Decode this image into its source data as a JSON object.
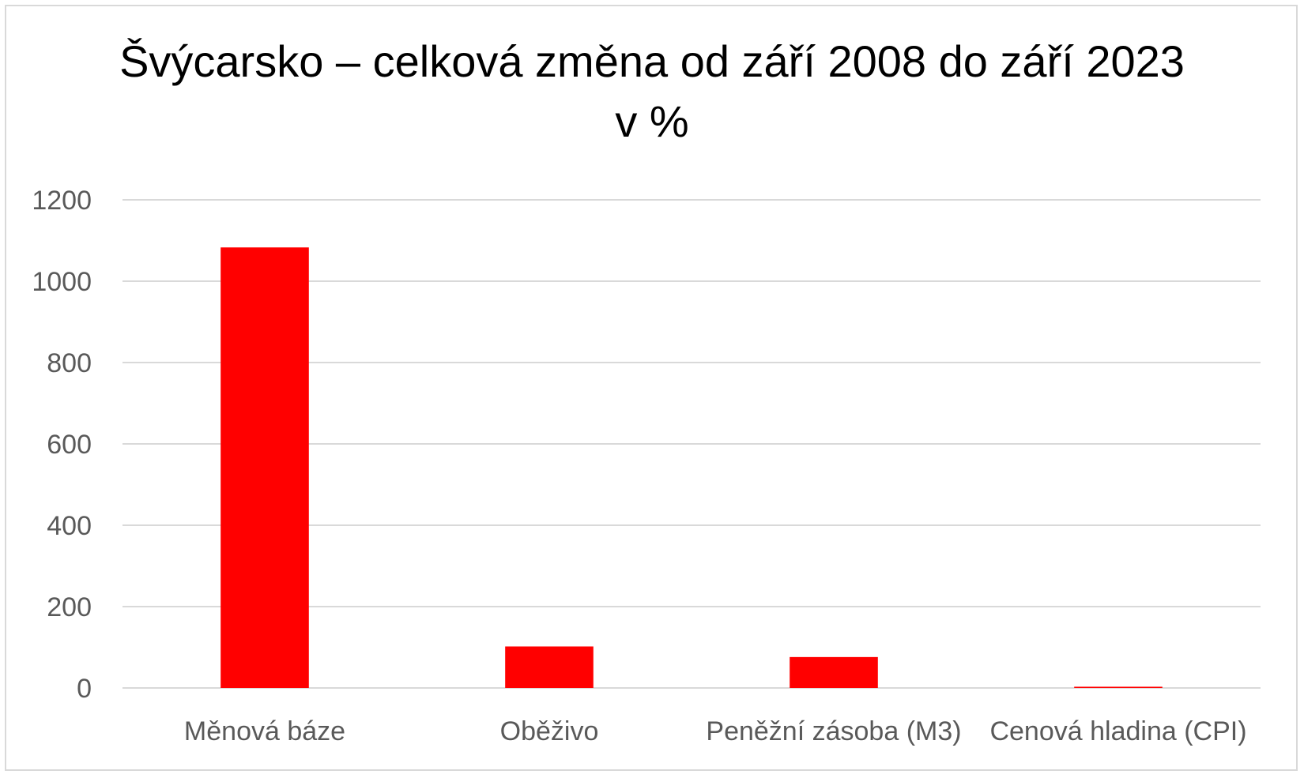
{
  "chart_data": {
    "type": "bar",
    "title": "Švýcarsko – celková změna od září 2008 do září 2023 v %",
    "categories": [
      "Měnová báze",
      "Oběživo",
      "Peněžní zásoba (M3)",
      "Cenová hladina (CPI)"
    ],
    "values": [
      1083,
      102,
      76,
      3
    ],
    "ylim": [
      0,
      1200
    ],
    "yticks": [
      0,
      200,
      400,
      600,
      800,
      1000,
      1200
    ],
    "grid": true,
    "legend": "none",
    "bar_color": "#ff0000",
    "grid_color": "#d9d9d9"
  }
}
